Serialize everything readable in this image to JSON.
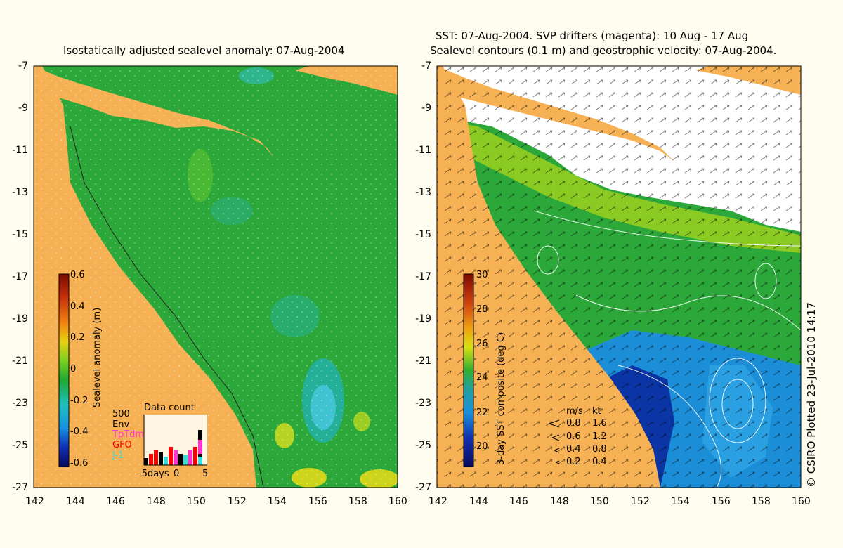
{
  "left_map": {
    "title": "Isostatically adjusted sealevel anomaly: 07-Aug-2004",
    "y_ticks": [
      "-7",
      "-9",
      "-11",
      "-13",
      "-15",
      "-17",
      "-19",
      "-21",
      "-23",
      "-25",
      "-27"
    ],
    "x_ticks": [
      "142",
      "144",
      "146",
      "148",
      "150",
      "152",
      "154",
      "156",
      "158",
      "160"
    ],
    "colorbar": {
      "label": "Sealevel anomaly (m)",
      "ticks": [
        "0.6",
        "0.4",
        "0.2",
        "0",
        "-0.2",
        "-0.4",
        "-0.6"
      ],
      "range": [
        -0.6,
        0.6
      ]
    },
    "data_count": {
      "title": "Data count",
      "scale_value": "500",
      "legend": [
        {
          "label": "Env",
          "color": "#000000"
        },
        {
          "label": "TpTdm",
          "color": "#ff33cc"
        },
        {
          "label": "GFO",
          "color": "#ff0000"
        },
        {
          "label": "J-1",
          "color": "#33dddd"
        }
      ],
      "x_labels": [
        "-5days",
        "0",
        "5"
      ]
    }
  },
  "right_map": {
    "title_line1": "SST: 07-Aug-2004. SVP drifters (magenta): 10 Aug - 17 Aug",
    "title_line2": "Sealevel contours (0.1 m) and geostrophic velocity: 07-Aug-2004.",
    "y_ticks": [
      "-7",
      "-9",
      "-11",
      "-13",
      "-15",
      "-17",
      "-19",
      "-21",
      "-23",
      "-25",
      "-27"
    ],
    "x_ticks": [
      "142",
      "144",
      "146",
      "148",
      "150",
      "152",
      "154",
      "156",
      "158",
      "160"
    ],
    "colorbar": {
      "label": "3-day SST composite (deg C)",
      "ticks": [
        "30",
        "28",
        "26",
        "24",
        "22",
        "20"
      ],
      "range": [
        20,
        30
      ]
    },
    "velocity_legend": {
      "header_ms": "m/s",
      "header_kt": "kt",
      "rows": [
        {
          "ms": "0.8",
          "kt": "1.6"
        },
        {
          "ms": "0.6",
          "kt": "1.2"
        },
        {
          "ms": "0.4",
          "kt": "0.8"
        },
        {
          "ms": "0.2",
          "kt": "0.4"
        }
      ]
    }
  },
  "credit": "© CSIRO Plotted 23-Jul-2010 14:17",
  "colors": {
    "land": "#f7b155",
    "sea_green": "#22aa22",
    "background": "#fffdf0"
  }
}
